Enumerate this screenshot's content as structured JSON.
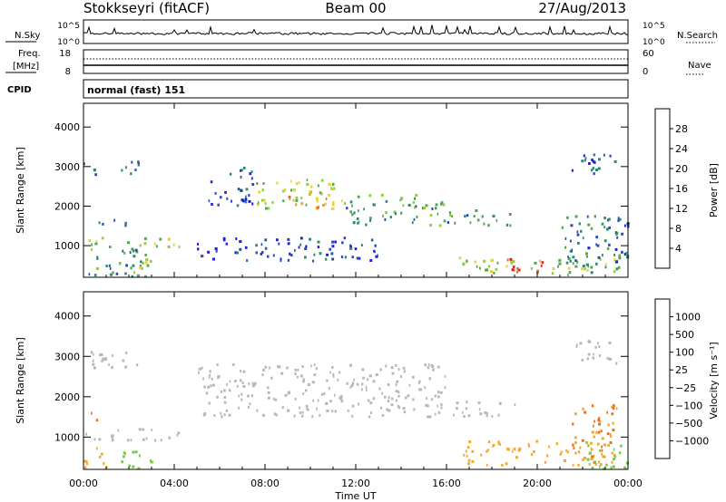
{
  "header": {
    "station": "Stokkseyri (fitACF)",
    "beam": "Beam 00",
    "date": "27/Aug/2013"
  },
  "noise_panel": {
    "left_label": "N.Sky",
    "right_label": "N.Search",
    "y_ticks_left": [
      "10^5",
      "10^0"
    ],
    "y_ticks_right": [
      "10^5",
      "10^0"
    ]
  },
  "freq_panel": {
    "label_line1": "Freq.",
    "label_line2": "[MHz]",
    "y_ticks_left": [
      "18",
      "8"
    ],
    "y_ticks_right": [
      "60",
      "0"
    ],
    "right_label": "Nave"
  },
  "cpid_panel": {
    "label": "CPID",
    "value": "normal (fast) 151"
  },
  "colors": {
    "power": [
      "#1e1ee6",
      "#2a4cb0",
      "#2e8a6e",
      "#4caa4c",
      "#8ccf3a",
      "#e8d23a",
      "#f0a028",
      "#e86a1e",
      "#e02020"
    ],
    "velocity": [
      "#e01818",
      "#f07010",
      "#f5a82a",
      "#c8c8c0",
      "#c8c8c0",
      "#6ad040",
      "#2a8a4a",
      "#3a5ab0",
      "#2838d8"
    ],
    "ground_scatter": "#b8bab2"
  },
  "chart_data": [
    {
      "type": "heatmap",
      "panel": "power",
      "ylabel": "Slant Range [km]",
      "y_ticks": [
        1000,
        2000,
        3000,
        4000
      ],
      "ylim": [
        200,
        4600
      ],
      "xlim": [
        "00:00",
        "24:00"
      ],
      "colorbar": {
        "label": "Power [dB]",
        "range": [
          0,
          32
        ],
        "ticks": [
          4,
          8,
          12,
          16,
          20,
          24,
          28
        ]
      },
      "echo_regions": [
        {
          "t0": 0.0,
          "t1": 0.6,
          "r0": 2700,
          "r1": 3100,
          "v": 6
        },
        {
          "t0": 1.0,
          "t1": 2.5,
          "r0": 2800,
          "r1": 3150,
          "v": 8
        },
        {
          "t0": 0.0,
          "t1": 2.0,
          "r0": 1500,
          "r1": 1650,
          "v": 6
        },
        {
          "t0": 0.0,
          "t1": 4.2,
          "r0": 900,
          "r1": 1200,
          "v": 16
        },
        {
          "t0": 0.0,
          "t1": 2.8,
          "r0": 200,
          "r1": 900,
          "v": 10
        },
        {
          "t0": 2.0,
          "t1": 3.0,
          "r0": 200,
          "r1": 700,
          "v": 14
        },
        {
          "t0": 5.5,
          "t1": 7.5,
          "r0": 2000,
          "r1": 3000,
          "v": 5
        },
        {
          "t0": 7.5,
          "t1": 11.5,
          "r0": 1900,
          "r1": 2700,
          "v": 16
        },
        {
          "t0": 9.0,
          "t1": 11.0,
          "r0": 1900,
          "r1": 2300,
          "v": 22
        },
        {
          "t0": 11.5,
          "t1": 16.0,
          "r0": 1500,
          "r1": 2300,
          "v": 12
        },
        {
          "t0": 16.0,
          "t1": 19.0,
          "r0": 1500,
          "r1": 1900,
          "v": 10
        },
        {
          "t0": 5.0,
          "t1": 13.0,
          "r0": 600,
          "r1": 1200,
          "v": 4
        },
        {
          "t0": 16.5,
          "t1": 23.5,
          "r0": 300,
          "r1": 700,
          "v": 16
        },
        {
          "t0": 18.5,
          "t1": 20.5,
          "r0": 300,
          "r1": 700,
          "v": 28
        },
        {
          "t0": 21.0,
          "t1": 24.0,
          "r0": 200,
          "r1": 1800,
          "v": 8
        },
        {
          "t0": 21.5,
          "t1": 23.5,
          "r0": 2800,
          "r1": 3400,
          "v": 5
        }
      ]
    },
    {
      "type": "heatmap",
      "panel": "velocity",
      "ylabel": "Slant Range [km]",
      "xlabel": "Time UT",
      "x_ticks": [
        "00:00",
        "04:00",
        "08:00",
        "12:00",
        "16:00",
        "20:00",
        "00:00"
      ],
      "y_ticks": [
        1000,
        2000,
        3000,
        4000
      ],
      "ylim": [
        200,
        4600
      ],
      "xlim": [
        "00:00",
        "24:00"
      ],
      "colorbar": {
        "label": "Velocity [m s⁻¹]",
        "ticks": [
          "1000",
          "500",
          "100",
          "25",
          "−25",
          "−100",
          "−500",
          "−1000"
        ]
      },
      "echo_regions": [
        {
          "t0": 0.0,
          "t1": 2.5,
          "r0": 2700,
          "r1": 3150,
          "v": 0,
          "gs": true
        },
        {
          "t0": 0.0,
          "t1": 4.2,
          "r0": 900,
          "r1": 1200,
          "v": 0,
          "gs": true
        },
        {
          "t0": 0.0,
          "t1": 0.6,
          "r0": 1400,
          "r1": 1600,
          "v": -400
        },
        {
          "t0": 0.0,
          "t1": 1.0,
          "r0": 200,
          "r1": 800,
          "v": -150
        },
        {
          "t0": 1.5,
          "t1": 3.0,
          "r0": 200,
          "r1": 700,
          "v": 150
        },
        {
          "t0": 5.0,
          "t1": 16.0,
          "r0": 1500,
          "r1": 2800,
          "v": 0,
          "gs": true
        },
        {
          "t0": 16.0,
          "t1": 19.0,
          "r0": 1500,
          "r1": 1900,
          "v": 0,
          "gs": true
        },
        {
          "t0": 16.5,
          "t1": 23.0,
          "r0": 300,
          "r1": 900,
          "v": -150
        },
        {
          "t0": 21.5,
          "t1": 23.5,
          "r0": 300,
          "r1": 1800,
          "v": -300
        },
        {
          "t0": 22.0,
          "t1": 24.0,
          "r0": 200,
          "r1": 800,
          "v": 200
        },
        {
          "t0": 21.5,
          "t1": 23.5,
          "r0": 2800,
          "r1": 3400,
          "v": 0,
          "gs": true
        }
      ]
    }
  ]
}
